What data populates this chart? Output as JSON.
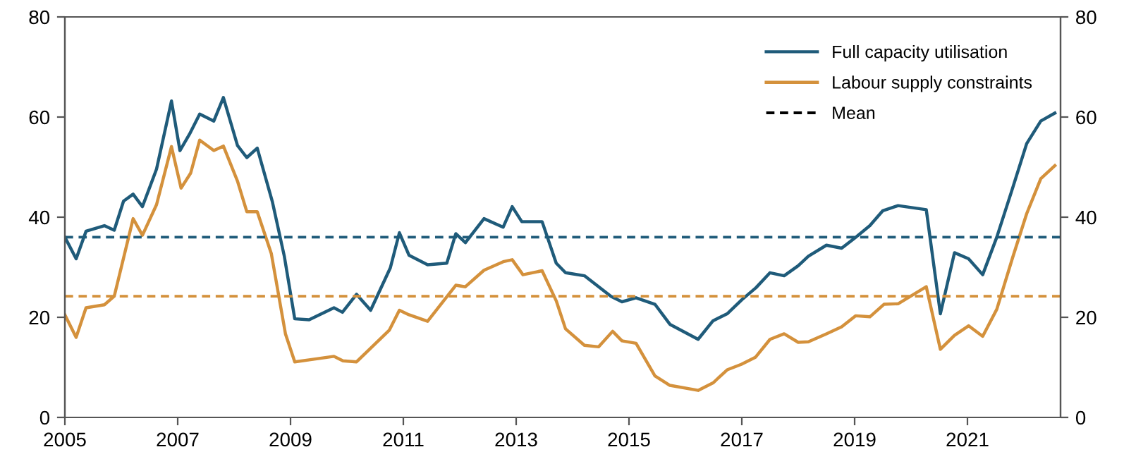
{
  "chart_data": {
    "type": "line",
    "xlim": [
      2005,
      2022.65
    ],
    "xticks": [
      2005,
      2007,
      2009,
      2011,
      2013,
      2015,
      2017,
      2019,
      2021
    ],
    "ylim": [
      0,
      80
    ],
    "yticks": [
      0,
      20,
      40,
      60,
      80
    ],
    "y2lim": [
      0,
      80
    ],
    "y2ticks": [
      0,
      20,
      40,
      60,
      80
    ],
    "grid": false,
    "legend": "top right",
    "line_style": "solid",
    "marker": "none",
    "series": [
      {
        "name": "Full capacity utilisation",
        "color": "#1f5b7a",
        "x": [
          2005.0,
          2005.2,
          2005.375,
          2005.7,
          2005.875,
          2006.04,
          2006.21,
          2006.375,
          2006.625,
          2006.89,
          2007.04,
          2007.21,
          2007.39,
          2007.64,
          2007.81,
          2008.06,
          2008.225,
          2008.41,
          2008.68,
          2008.89,
          2009.075,
          2009.33,
          2009.77,
          2009.92,
          2010.17,
          2010.42,
          2010.77,
          2010.93,
          2011.1,
          2011.43,
          2011.77,
          2011.93,
          2012.1,
          2012.43,
          2012.77,
          2012.93,
          2013.1,
          2013.46,
          2013.71,
          2013.875,
          2014.21,
          2014.68,
          2014.875,
          2015.125,
          2015.46,
          2015.725,
          2016.225,
          2016.49,
          2016.74,
          2017.0,
          2017.25,
          2017.5,
          2017.75,
          2018.0,
          2018.18,
          2018.5,
          2018.77,
          2019.02,
          2019.27,
          2019.5,
          2019.77,
          2020.27,
          2020.52,
          2020.77,
          2021.02,
          2021.27,
          2021.52,
          2021.8,
          2022.05,
          2022.3,
          2022.55
        ],
        "values": [
          36.0,
          31.7,
          37.2,
          38.3,
          37.4,
          43.2,
          44.6,
          42.1,
          49.6,
          63.2,
          53.3,
          56.6,
          60.6,
          59.2,
          63.9,
          54.3,
          51.9,
          53.8,
          43.0,
          32.2,
          19.7,
          19.5,
          21.9,
          21.0,
          24.6,
          21.4,
          29.9,
          36.9,
          32.4,
          30.5,
          30.8,
          36.7,
          34.9,
          39.7,
          38.0,
          42.1,
          39.1,
          39.1,
          30.8,
          28.9,
          28.3,
          24.2,
          23.1,
          23.9,
          22.6,
          18.6,
          15.6,
          19.3,
          20.7,
          23.5,
          25.9,
          28.9,
          28.3,
          30.3,
          32.2,
          34.4,
          33.8,
          36.0,
          38.3,
          41.3,
          42.3,
          41.5,
          20.7,
          32.9,
          31.7,
          28.5,
          36.0,
          45.8,
          54.7,
          59.2,
          60.8
        ]
      },
      {
        "name": "Labour supply constraints",
        "color": "#d4913c",
        "x": [
          2005.0,
          2005.2,
          2005.375,
          2005.7,
          2005.875,
          2006.21,
          2006.375,
          2006.625,
          2006.89,
          2007.06,
          2007.23,
          2007.39,
          2007.64,
          2007.81,
          2008.06,
          2008.225,
          2008.41,
          2008.66,
          2008.91,
          2009.075,
          2009.33,
          2009.77,
          2009.93,
          2010.17,
          2010.75,
          2010.93,
          2011.1,
          2011.43,
          2011.93,
          2012.1,
          2012.43,
          2012.77,
          2012.93,
          2013.12,
          2013.46,
          2013.71,
          2013.875,
          2014.21,
          2014.46,
          2014.71,
          2014.875,
          2015.125,
          2015.46,
          2015.725,
          2016.225,
          2016.49,
          2016.74,
          2016.99,
          2017.24,
          2017.5,
          2017.75,
          2018.0,
          2018.18,
          2018.5,
          2018.77,
          2019.02,
          2019.27,
          2019.52,
          2019.77,
          2020.27,
          2020.52,
          2020.77,
          2021.02,
          2021.27,
          2021.52,
          2021.8,
          2022.05,
          2022.3,
          2022.55
        ],
        "values": [
          20.5,
          16.0,
          21.9,
          22.5,
          24.2,
          39.7,
          36.4,
          42.5,
          54.1,
          45.8,
          48.8,
          55.4,
          53.3,
          54.2,
          47.2,
          41.1,
          41.1,
          32.7,
          16.7,
          11.1,
          11.5,
          12.2,
          11.3,
          11.1,
          17.4,
          21.4,
          20.5,
          19.2,
          26.4,
          26.1,
          29.4,
          31.1,
          31.5,
          28.5,
          29.3,
          23.3,
          17.7,
          14.4,
          14.1,
          17.2,
          15.3,
          14.8,
          8.3,
          6.4,
          5.4,
          6.9,
          9.5,
          10.6,
          12.0,
          15.6,
          16.7,
          15.0,
          15.1,
          16.7,
          18.1,
          20.3,
          20.1,
          22.6,
          22.7,
          26.1,
          13.6,
          16.4,
          18.3,
          16.2,
          21.6,
          31.9,
          40.7,
          47.7,
          50.3
        ]
      }
    ],
    "annotations": [
      "Mean"
    ],
    "ref_lines": [
      {
        "axis": "y",
        "value": 36.0,
        "color": "#1f5b7a",
        "line_style": "dashed"
      },
      {
        "axis": "y",
        "value": 24.2,
        "color": "#d4913c",
        "line_style": "dashed"
      }
    ]
  }
}
